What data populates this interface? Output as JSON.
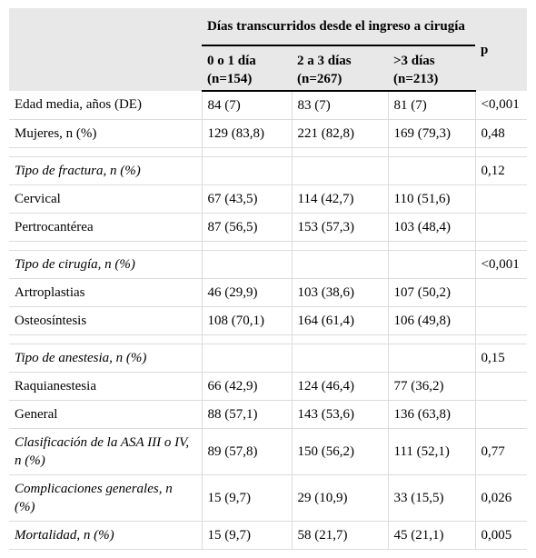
{
  "header": {
    "group_title": "Días transcurridos desde el ingreso a cirugía",
    "p_label": "p",
    "columns": [
      {
        "label": "0 o 1 día",
        "n": "(n=154)"
      },
      {
        "label": "2 a 3 días",
        "n": "(n=267)"
      },
      {
        "label": ">3 días",
        "n": "(n=213)"
      }
    ]
  },
  "rows": [
    {
      "label": "Edad media, años (DE)",
      "c1": "84 (7)",
      "c2": "83 (7)",
      "c3": "81 (7)",
      "p": "<0,001"
    },
    {
      "label": "Mujeres, n (%)",
      "c1": "129 (83,8)",
      "c2": "221 (82,8)",
      "c3": "169 (79,3)",
      "p": "0,48"
    },
    {
      "label": "Tipo de fractura, n (%)",
      "c1": "",
      "c2": "",
      "c3": "",
      "p": "0,12"
    },
    {
      "label": "Cervical",
      "c1": "67 (43,5)",
      "c2": "114 (42,7)",
      "c3": "110 (51,6)",
      "p": ""
    },
    {
      "label": "Pertrocantérea",
      "c1": "87 (56,5)",
      "c2": "153 (57,3)",
      "c3": "103 (48,4)",
      "p": ""
    },
    {
      "label": "Tipo de cirugía, n (%)",
      "c1": "",
      "c2": "",
      "c3": "",
      "p": "<0,001"
    },
    {
      "label": "Artroplastias",
      "c1": "46 (29,9)",
      "c2": "103 (38,6)",
      "c3": "107 (50,2)",
      "p": ""
    },
    {
      "label": "Osteosíntesis",
      "c1": "108 (70,1)",
      "c2": "164 (61,4)",
      "c3": "106 (49,8)",
      "p": ""
    },
    {
      "label": "Tipo de anestesia, n (%)",
      "c1": "",
      "c2": "",
      "c3": "",
      "p": "0,15"
    },
    {
      "label": "Raquianestesia",
      "c1": "66 (42,9)",
      "c2": "124 (46,4)",
      "c3": "77 (36,2)",
      "p": ""
    },
    {
      "label": "General",
      "c1": "88 (57,1)",
      "c2": "143 (53,6)",
      "c3": "136 (63,8)",
      "p": ""
    },
    {
      "label": "Clasificación de la ASA III o IV, n (%)",
      "c1": "89 (57,8)",
      "c2": "150 (56,2)",
      "c3": "111 (52,1)",
      "p": "0,77"
    },
    {
      "label": "Complicaciones generales, n (%)",
      "c1": "15 (9,7)",
      "c2": "29 (10,9)",
      "c3": "33 (15,5)",
      "p": "0,026"
    },
    {
      "label": "Mortalidad, n (%)",
      "c1": "15 (9,7)",
      "c2": "58 (21,7)",
      "c3": "45 (21,1)",
      "p": "0,005"
    }
  ]
}
